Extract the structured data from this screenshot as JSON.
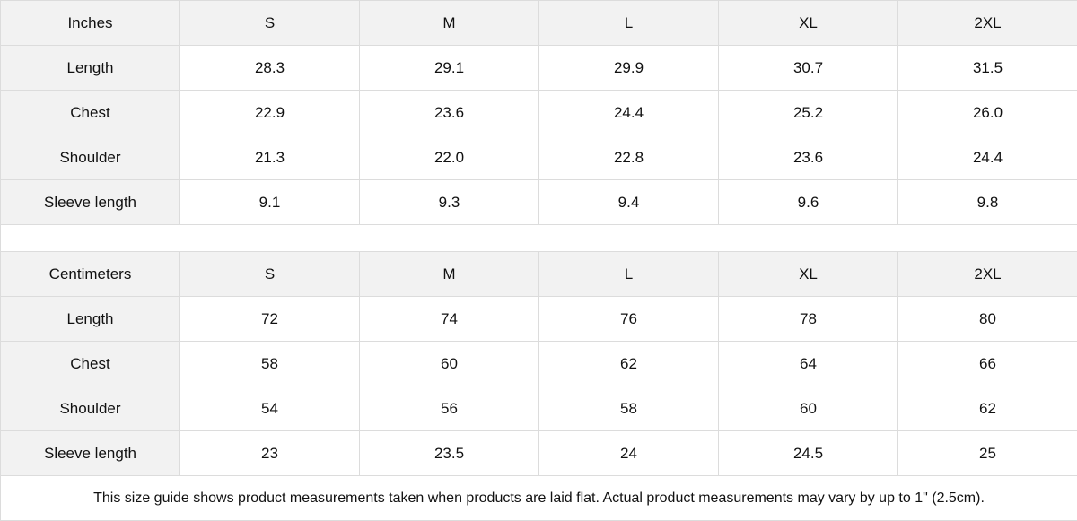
{
  "inches": {
    "header": [
      "Inches",
      "S",
      "M",
      "L",
      "XL",
      "2XL"
    ],
    "rows": [
      [
        "Length",
        "28.3",
        "29.1",
        "29.9",
        "30.7",
        "31.5"
      ],
      [
        "Chest",
        "22.9",
        "23.6",
        "24.4",
        "25.2",
        "26.0"
      ],
      [
        "Shoulder",
        "21.3",
        "22.0",
        "22.8",
        "23.6",
        "24.4"
      ],
      [
        "Sleeve length",
        "9.1",
        "9.3",
        "9.4",
        "9.6",
        "9.8"
      ]
    ]
  },
  "centimeters": {
    "header": [
      "Centimeters",
      "S",
      "M",
      "L",
      "XL",
      "2XL"
    ],
    "rows": [
      [
        "Length",
        "72",
        "74",
        "76",
        "78",
        "80"
      ],
      [
        "Chest",
        "58",
        "60",
        "62",
        "64",
        "66"
      ],
      [
        "Shoulder",
        "54",
        "56",
        "58",
        "60",
        "62"
      ],
      [
        "Sleeve length",
        "23",
        "23.5",
        "24",
        "24.5",
        "25"
      ]
    ]
  },
  "note": "This size guide shows product measurements taken when products are laid flat.  Actual product measurements may vary by up to 1\" (2.5cm).",
  "colors": {
    "header_bg": "#f2f2f2",
    "border": "#dcdcdc"
  }
}
